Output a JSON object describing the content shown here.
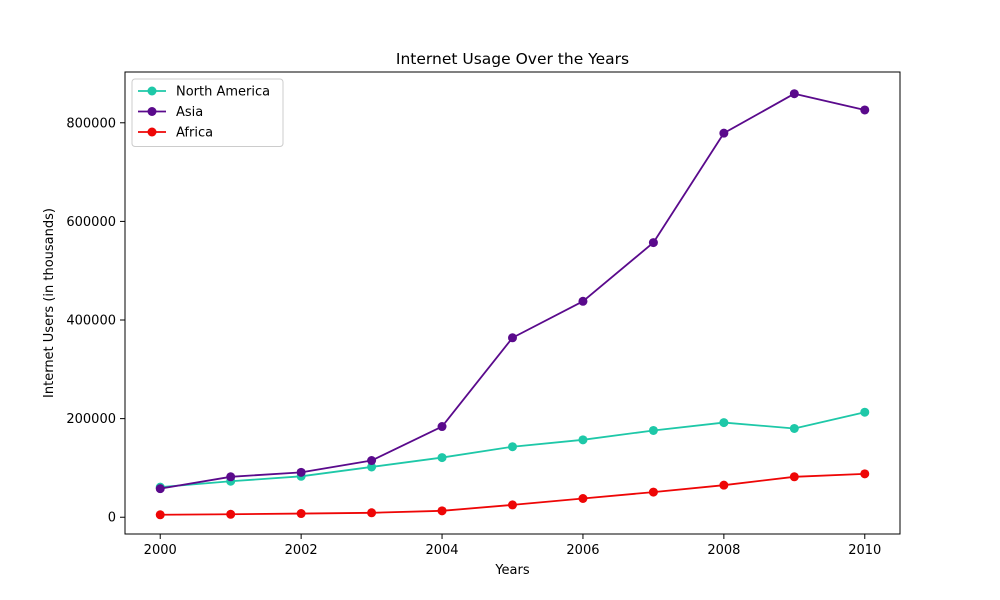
{
  "chart_data": {
    "type": "line",
    "title": "Internet Usage Over the Years",
    "xlabel": "Years",
    "ylabel": "Internet Users (in thousands)",
    "x": [
      2000,
      2001,
      2002,
      2003,
      2004,
      2005,
      2006,
      2007,
      2008,
      2009,
      2010
    ],
    "xlim": [
      1999.5,
      2010.5
    ],
    "ylim": [
      -34000,
      903000
    ],
    "x_ticks": [
      2000,
      2002,
      2004,
      2006,
      2008,
      2010
    ],
    "y_ticks": [
      0,
      200000,
      400000,
      600000,
      800000
    ],
    "grid": false,
    "legend_position": "upper-left",
    "series": [
      {
        "name": "North America",
        "color": "#1ec8a8",
        "values": [
          61000,
          73000,
          83000,
          102000,
          121000,
          143000,
          157000,
          176000,
          192000,
          180000,
          213000
        ]
      },
      {
        "name": "Asia",
        "color": "#5a0a8c",
        "values": [
          58000,
          82000,
          91000,
          115000,
          184000,
          364000,
          438000,
          557000,
          779000,
          859000,
          826000
        ]
      },
      {
        "name": "Africa",
        "color": "#ee0606",
        "values": [
          5000,
          6000,
          7500,
          9000,
          13000,
          25000,
          38000,
          51000,
          65000,
          82000,
          88000
        ]
      }
    ]
  }
}
